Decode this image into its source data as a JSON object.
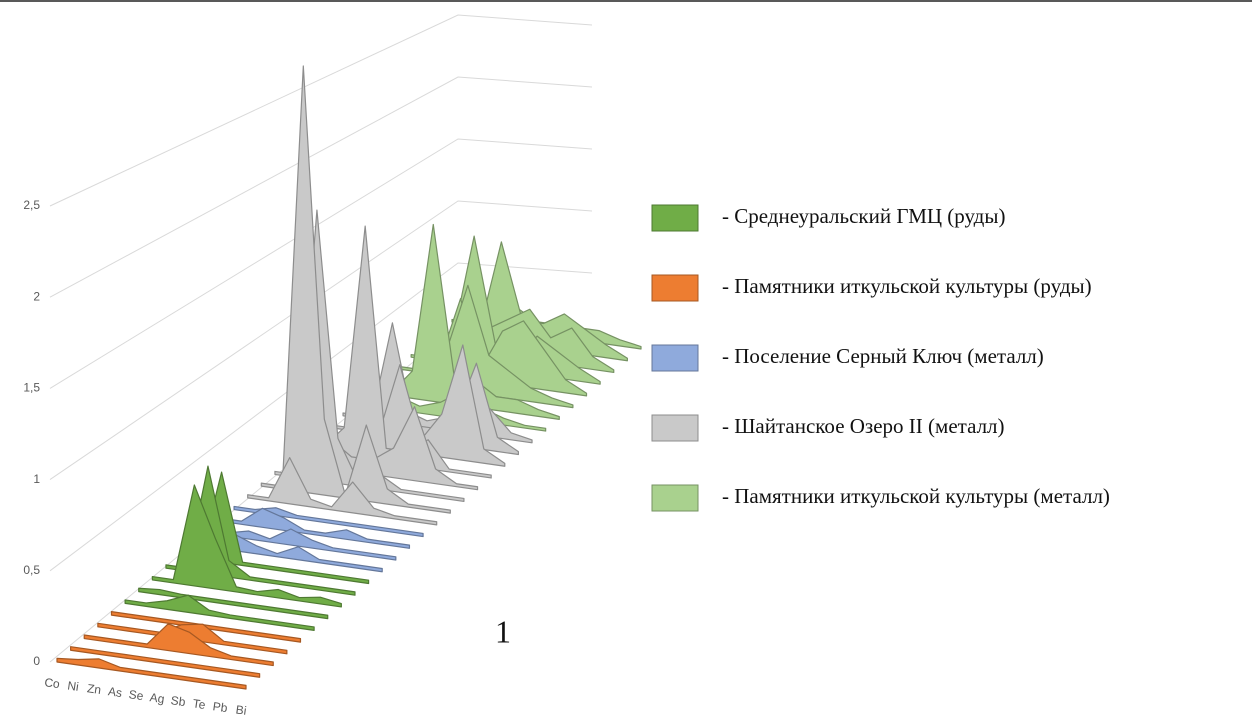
{
  "chart_data": {
    "type": "ridge3d",
    "categories": [
      "Co",
      "Ni",
      "Zn",
      "As",
      "Se",
      "Ag",
      "Sb",
      "Te",
      "Pb",
      "Bi"
    ],
    "ylim": [
      0,
      2.5
    ],
    "yticks": [
      0,
      {
        "value": 0.5,
        "label": "0,5"
      },
      1,
      {
        "value": 1.5,
        "label": "1,5"
      },
      2,
      {
        "value": 2.5,
        "label": "2,5"
      }
    ],
    "grid": true,
    "annotation": "1",
    "series": [
      {
        "name": "- Памятники иткульской культуры (руды)",
        "color": "#ed7d31",
        "rows": [
          [
            0.02,
            0.03,
            0.05,
            0.02,
            0.02,
            0.02,
            0.02,
            0.02,
            0.02,
            0.02
          ],
          [
            0.02,
            0.02,
            0.02,
            0.02,
            0.02,
            0.02,
            0.02,
            0.02,
            0.02,
            0.02
          ],
          [
            0.02,
            0.02,
            0.02,
            0.02,
            0.15,
            0.12,
            0.05,
            0.02,
            0.02,
            0.02
          ],
          [
            0.02,
            0.02,
            0.02,
            0.02,
            0.08,
            0.1,
            0.02,
            0.02,
            0.02,
            0.02
          ],
          [
            0.02,
            0.02,
            0.02,
            0.02,
            0.02,
            0.02,
            0.02,
            0.02,
            0.02,
            0.02
          ]
        ]
      },
      {
        "name": "- Среднеуральский ГМЦ (руды)",
        "color": "#70ad47",
        "rows": [
          [
            0.02,
            0.02,
            0.05,
            0.1,
            0.03,
            0.02,
            0.02,
            0.02,
            0.02,
            0.02
          ],
          [
            0.02,
            0.03,
            0.02,
            0.02,
            0.02,
            0.02,
            0.02,
            0.02,
            0.02,
            0.02
          ],
          [
            0.02,
            0.02,
            0.6,
            0.3,
            0.03,
            0.02,
            0.05,
            0.02,
            0.04,
            0.02
          ],
          [
            0.02,
            0.02,
            0.65,
            0.1,
            0.02,
            0.02,
            0.02,
            0.02,
            0.02,
            0.02
          ],
          [
            0.02,
            0.02,
            0.55,
            0.02,
            0.02,
            0.02,
            0.02,
            0.02,
            0.02,
            0.02
          ]
        ]
      },
      {
        "name": "- Поселение Серный Ключ (металл)",
        "color": "#8faadc",
        "rows": [
          [
            0.02,
            0.02,
            0.1,
            0.05,
            0.02,
            0.08,
            0.02,
            0.02,
            0.02,
            0.02
          ],
          [
            0.02,
            0.02,
            0.05,
            0.02,
            0.1,
            0.05,
            0.02,
            0.02,
            0.02,
            0.02
          ],
          [
            0.02,
            0.02,
            0.12,
            0.08,
            0.02,
            0.02,
            0.06,
            0.02,
            0.02,
            0.02
          ],
          [
            0.02,
            0.02,
            0.05,
            0.02,
            0.02,
            0.02,
            0.02,
            0.02,
            0.02,
            0.02
          ]
        ]
      },
      {
        "name": "- Шайтанское Озеро II (металл)",
        "color": "#c9c9c9",
        "rows": [
          [
            0.02,
            0.02,
            0.3,
            0.05,
            0.02,
            0.2,
            0.05,
            0.02,
            0.02,
            0.02
          ],
          [
            0.02,
            0.02,
            2.8,
            0.5,
            0.02,
            0.5,
            0.1,
            0.02,
            0.02,
            0.02
          ],
          [
            0.02,
            0.02,
            1.8,
            0.3,
            0.02,
            0.1,
            0.02,
            0.02,
            0.02,
            0.02
          ],
          [
            0.02,
            0.02,
            0.2,
            0.1,
            0.1,
            0.2,
            0.5,
            0.1,
            0.02,
            0.02
          ],
          [
            0.02,
            0.05,
            0.2,
            1.6,
            0.1,
            0.1,
            0.2,
            0.02,
            0.02,
            0.02
          ],
          [
            0.02,
            0.02,
            0.1,
            0.1,
            0.6,
            0.1,
            0.3,
            0.8,
            0.1,
            0.02
          ],
          [
            0.02,
            0.02,
            0.1,
            0.8,
            0.1,
            0.1,
            0.2,
            0.6,
            0.1,
            0.02
          ],
          [
            0.02,
            0.02,
            0.05,
            0.1,
            0.05,
            0.1,
            0.1,
            0.2,
            0.05,
            0.02
          ]
        ]
      },
      {
        "name": "- Памятники иткульской культуры (металл)",
        "color": "#a9d18e",
        "rows": [
          [
            0.02,
            0.02,
            0.1,
            0.05,
            0.1,
            0.2,
            0.1,
            0.05,
            0.02,
            0.02
          ],
          [
            0.02,
            0.02,
            0.2,
            1.3,
            0.2,
            0.2,
            0.1,
            0.1,
            0.05,
            0.02
          ],
          [
            0.02,
            0.02,
            0.1,
            0.3,
            0.8,
            0.3,
            0.2,
            0.1,
            0.05,
            0.02
          ],
          [
            0.02,
            0.02,
            0.1,
            0.6,
            0.1,
            0.4,
            0.5,
            0.3,
            0.1,
            0.02
          ],
          [
            0.02,
            0.02,
            0.2,
            1.0,
            0.2,
            0.1,
            0.3,
            0.2,
            0.1,
            0.02
          ],
          [
            0.02,
            0.02,
            0.1,
            0.2,
            0.3,
            0.4,
            0.2,
            0.3,
            0.1,
            0.02
          ],
          [
            0.02,
            0.02,
            0.1,
            0.8,
            0.2,
            0.2,
            0.3,
            0.2,
            0.1,
            0.02
          ],
          [
            0.02,
            0.02,
            0.05,
            0.2,
            0.1,
            0.1,
            0.1,
            0.1,
            0.05,
            0.02
          ]
        ]
      }
    ]
  }
}
